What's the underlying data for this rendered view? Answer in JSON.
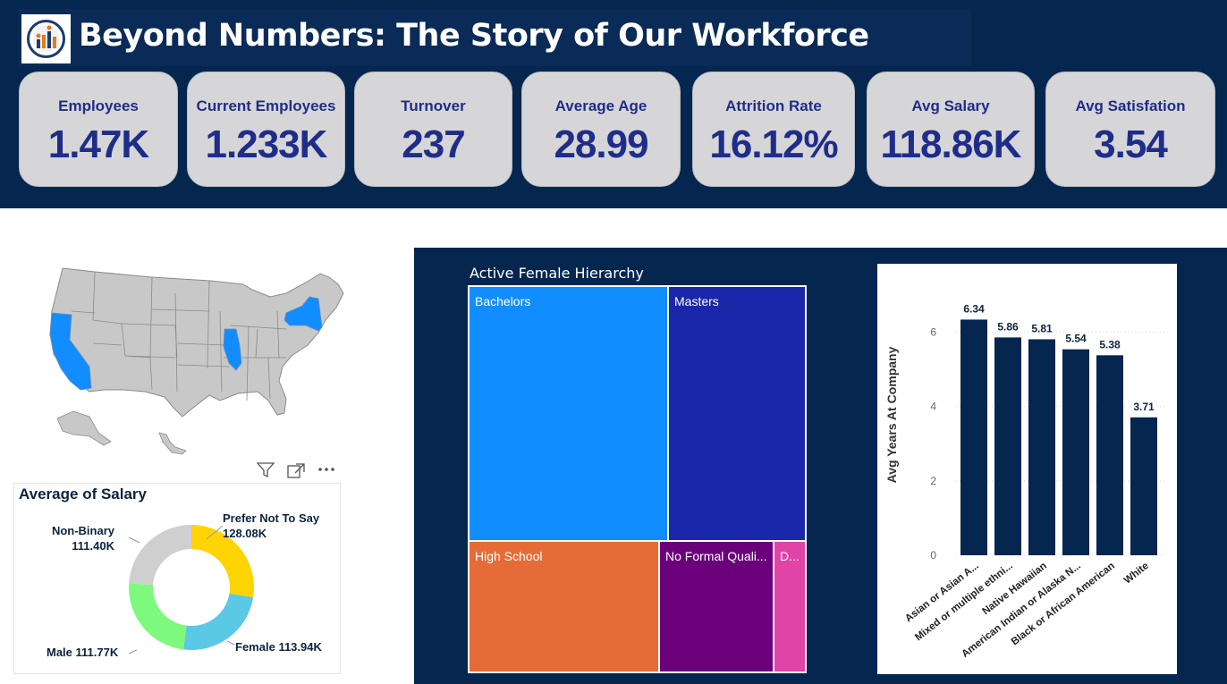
{
  "header": {
    "title": "Beyond Numbers: The Story of Our Workforce",
    "logo_icon": "workforce-logo-icon"
  },
  "kpis": [
    {
      "label": "Employees",
      "value": "1.47K"
    },
    {
      "label": "Current Employees",
      "value": "1.233K"
    },
    {
      "label": "Turnover",
      "value": "237"
    },
    {
      "label": "Average Age",
      "value": "28.99"
    },
    {
      "label": "Attrition Rate",
      "value": "16.12%"
    },
    {
      "label": "Avg Salary",
      "value": "118.86K"
    },
    {
      "label": "Avg Satisfation",
      "value": "3.54"
    }
  ],
  "map": {
    "highlighted_states": [
      "California",
      "Illinois",
      "New York"
    ],
    "highlight_color": "#118dff",
    "base_color": "#c8c8c8"
  },
  "visual_actions": {
    "filter_icon": "filter-icon",
    "focus_icon": "focus-mode-icon",
    "more_icon": "more-options-icon"
  },
  "donut": {
    "title": "Average of Salary",
    "segments": [
      {
        "name": "Prefer Not To Say",
        "value": "128.08K",
        "amount": 128.08,
        "color": "#ffd400"
      },
      {
        "name": "Female",
        "value": "113.94K",
        "amount": 113.94,
        "color": "#5bc8e4"
      },
      {
        "name": "Male",
        "value": "111.77K",
        "amount": 111.77,
        "color": "#7dfa7d"
      },
      {
        "name": "Non-Binary",
        "value": "111.40K",
        "amount": 111.4,
        "color": "#cfcfcf"
      }
    ]
  },
  "treemap": {
    "title": "Active Female Hierarchy",
    "tiles": [
      {
        "label": "Bachelors",
        "color": "#118dff"
      },
      {
        "label": "Masters",
        "color": "#1a27a8"
      },
      {
        "label": "High School",
        "color": "#e66c37"
      },
      {
        "label": "No Formal Quali...",
        "color": "#6b007b"
      },
      {
        "label": "D...",
        "color": "#e044a7"
      }
    ]
  },
  "chart_data": {
    "type": "bar",
    "title": "",
    "xlabel": "",
    "ylabel": "Avg Years At Company",
    "categories": [
      "Asian or Asian A...",
      "Mixed or multiple ethni...",
      "Native Hawaiian",
      "American Indian or Alaska N...",
      "Black or African American",
      "White"
    ],
    "values": [
      6.34,
      5.86,
      5.81,
      5.54,
      5.38,
      3.71
    ],
    "value_labels": [
      "6.34",
      "5.86",
      "5.81",
      "5.54",
      "5.38",
      "3.71"
    ],
    "yticks": [
      "0",
      "2",
      "4",
      "6"
    ],
    "ylim": [
      0,
      7
    ],
    "grid": true,
    "bar_color": "#04264f"
  }
}
